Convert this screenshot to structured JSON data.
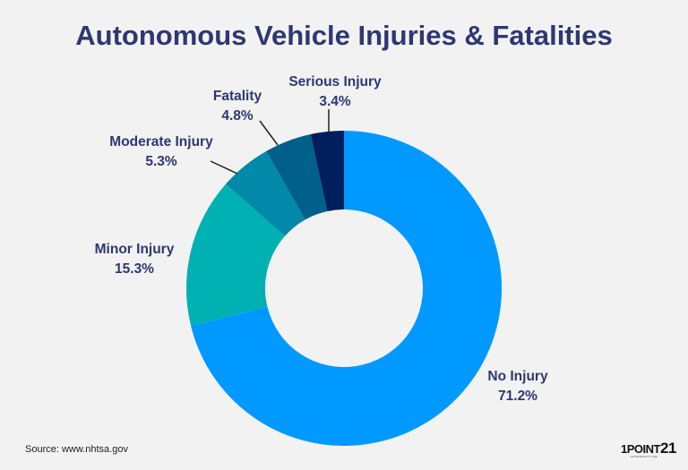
{
  "title": "Autonomous Vehicle Injuries & Fatalities",
  "source": "Source: www.nhtsa.gov",
  "logo": {
    "main": "1POINT",
    "num": "21",
    "tagline": "INTERACTIVE"
  },
  "chart_data": {
    "type": "pie",
    "donut": true,
    "title": "Autonomous Vehicle Injuries & Fatalities",
    "start": "top, clockwise",
    "slices": [
      {
        "name": "No Injury",
        "value": 71.2,
        "label": "71.2%",
        "color": "#0099ff"
      },
      {
        "name": "Minor Injury",
        "value": 15.3,
        "label": "15.3%",
        "color": "#00b1b3"
      },
      {
        "name": "Moderate Injury",
        "value": 5.3,
        "label": "5.3%",
        "color": "#0089a8"
      },
      {
        "name": "Fatality",
        "value": 4.8,
        "label": "4.8%",
        "color": "#00608c"
      },
      {
        "name": "Serious Injury",
        "value": 3.4,
        "label": "3.4%",
        "color": "#001f5c"
      }
    ]
  }
}
